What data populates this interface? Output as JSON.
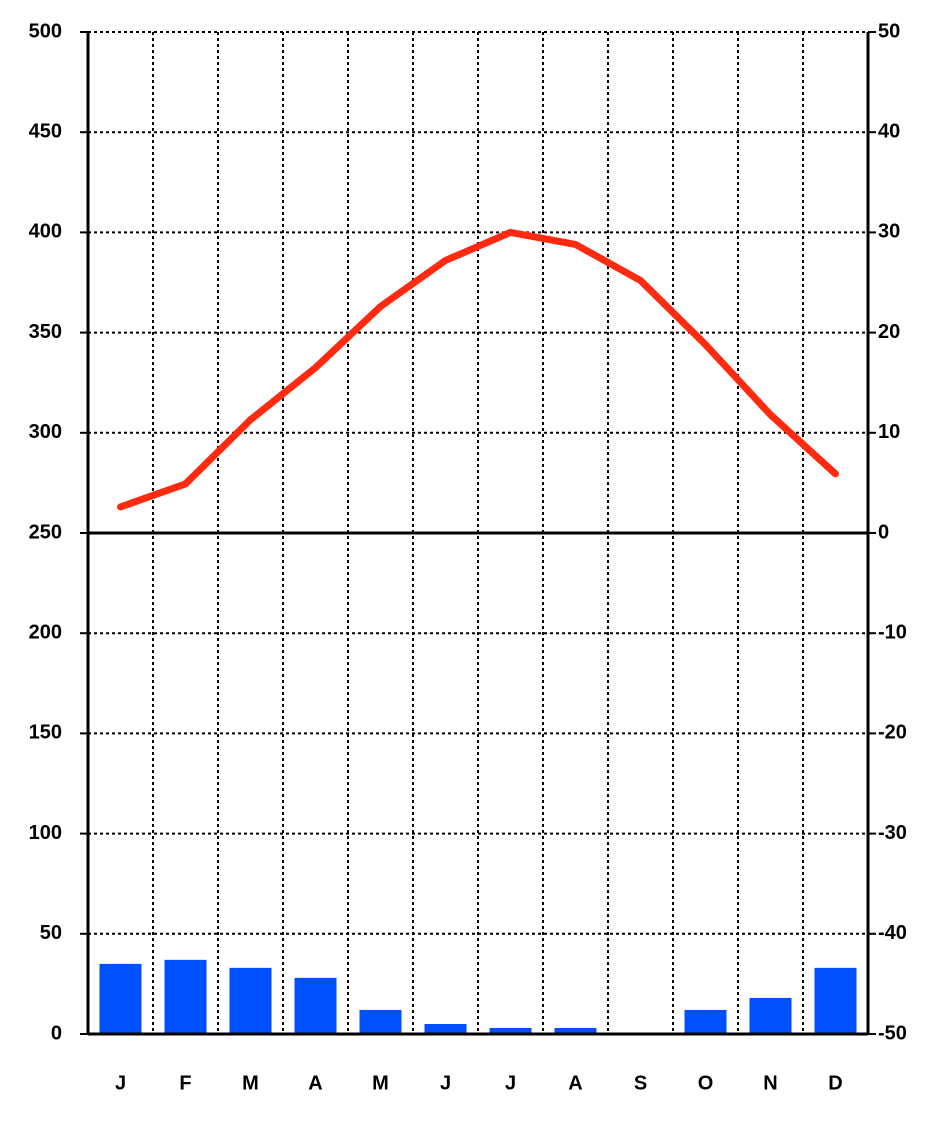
{
  "chart_data": {
    "type": "climograph",
    "categories": [
      "J",
      "F",
      "M",
      "A",
      "M",
      "J",
      "J",
      "A",
      "S",
      "O",
      "N",
      "D"
    ],
    "series": [
      {
        "type": "bar",
        "color": "#0050ff",
        "axis": "y",
        "values": [
          35,
          37,
          33,
          28,
          12,
          5,
          3,
          3,
          0,
          12,
          18,
          33
        ]
      },
      {
        "type": "line",
        "color": "#ff2a10",
        "axis": "y2",
        "values": [
          2.6,
          4.9,
          11.3,
          16.5,
          22.6,
          27.2,
          30,
          28.8,
          25.2,
          18.8,
          11.8,
          5.9
        ]
      }
    ],
    "ylim": [
      0,
      500
    ],
    "yticks": [
      0,
      50,
      100,
      150,
      200,
      250,
      300,
      350,
      400,
      450,
      500
    ],
    "y2lim": [
      -50,
      50
    ],
    "y2ticks": [
      -50,
      -40,
      -30,
      -20,
      -10,
      0,
      10,
      20,
      30,
      40,
      50
    ],
    "grid": true
  }
}
